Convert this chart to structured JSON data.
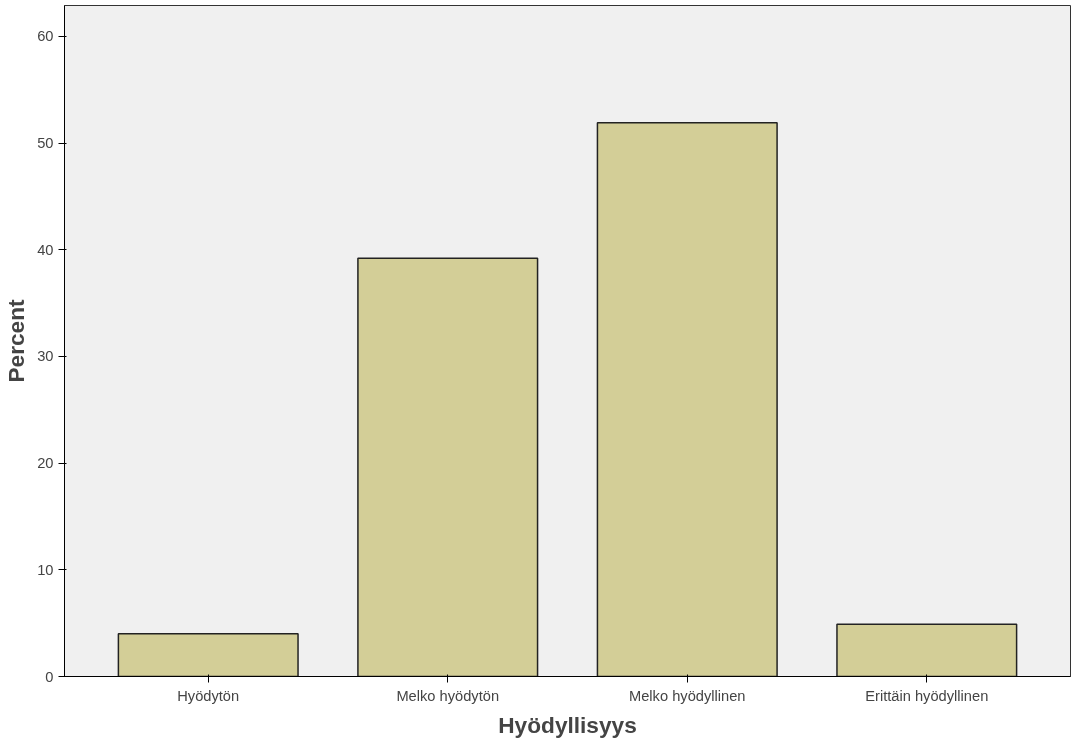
{
  "chart_data": {
    "type": "bar",
    "xlabel": "Hyödyllisyys",
    "ylabel": "Percent",
    "categories": [
      "Hyödytön",
      "Melko hyödytön",
      "Melko hyödyllinen",
      "Erittäin hyödyllinen"
    ],
    "values": [
      4.0,
      39.2,
      51.9,
      4.9
    ],
    "color": "#d3ce97",
    "ylim": [
      0,
      62.9
    ],
    "yticks": [
      0,
      10,
      20,
      30,
      40,
      50,
      60
    ],
    "grid": false
  }
}
